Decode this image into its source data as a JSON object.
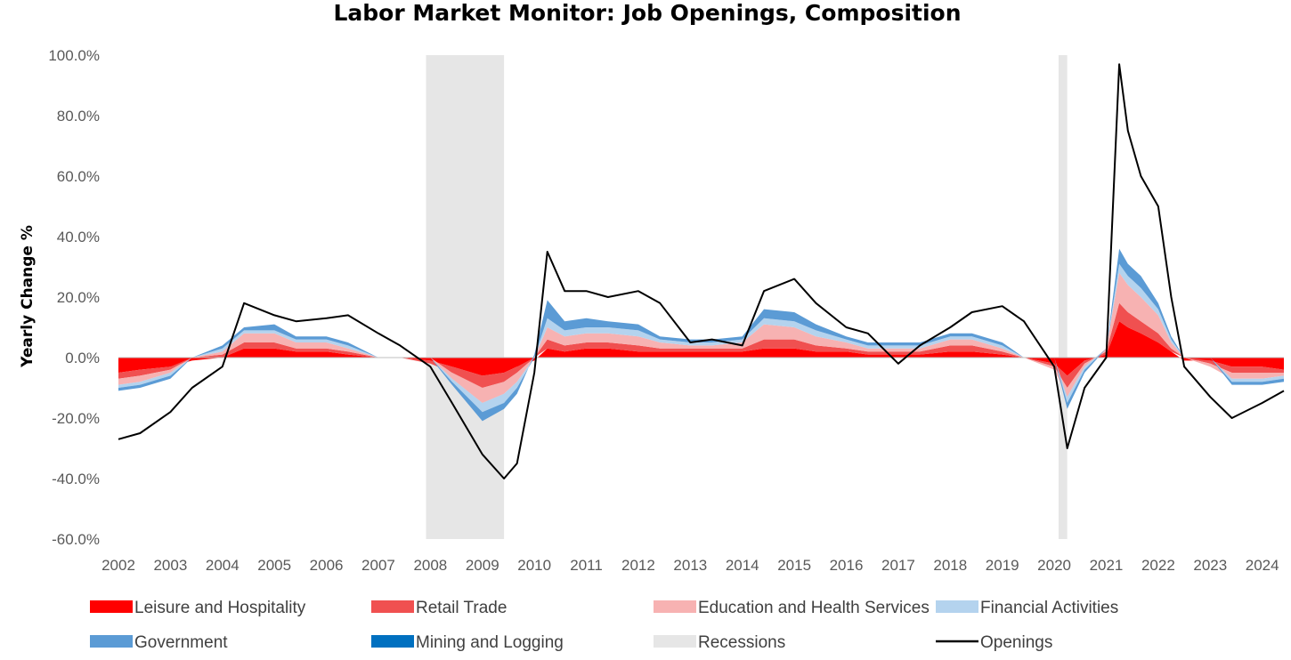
{
  "chart_data": {
    "type": "area",
    "title": "Labor Market Monitor: Job Openings, Composition",
    "ylabel": "Yearly Change %",
    "xlabel": "",
    "y_unit": "%",
    "ylim": [
      -60,
      100
    ],
    "yticks": [
      -60,
      -40,
      -20,
      0,
      20,
      40,
      60,
      80,
      100
    ],
    "ytick_labels": [
      "-60.0%",
      "-40.0%",
      "-20.0%",
      "0.0%",
      "20.0%",
      "40.0%",
      "60.0%",
      "80.0%",
      "100.0%"
    ],
    "xlim": [
      "2002-01",
      "2024-06"
    ],
    "xtick_labels": [
      "2002",
      "2003",
      "2004",
      "2005",
      "2006",
      "2007",
      "2008",
      "2009",
      "2010",
      "2011",
      "2012",
      "2013",
      "2014",
      "2015",
      "2016",
      "2017",
      "2018",
      "2019",
      "2020",
      "2021",
      "2022",
      "2023",
      "2024"
    ],
    "grid": false,
    "legend_position": "bottom",
    "colors": {
      "Leisure and Hospitality": "#ff0000",
      "Retail Trade": "#f05050",
      "Education and Health Services": "#f7b2b2",
      "Financial Activities": "#b4d3ee",
      "Government": "#5b9bd5",
      "Mining and Logging": "#0070c0",
      "Recessions": "#e6e6e6",
      "Openings": "#000000"
    },
    "recessions": [
      {
        "start": "2007-12",
        "end": "2009-06"
      },
      {
        "start": "2020-02",
        "end": "2020-04"
      }
    ],
    "x": [
      "2002-01",
      "2002-06",
      "2003-01",
      "2003-06",
      "2004-01",
      "2004-06",
      "2005-01",
      "2005-06",
      "2006-01",
      "2006-06",
      "2007-01",
      "2007-06",
      "2008-01",
      "2008-06",
      "2009-01",
      "2009-06",
      "2009-09",
      "2010-01",
      "2010-04",
      "2010-08",
      "2011-01",
      "2011-06",
      "2012-01",
      "2012-06",
      "2013-01",
      "2013-06",
      "2014-01",
      "2014-06",
      "2015-01",
      "2015-06",
      "2016-01",
      "2016-06",
      "2017-01",
      "2017-06",
      "2018-01",
      "2018-06",
      "2019-01",
      "2019-06",
      "2020-01",
      "2020-04",
      "2020-08",
      "2021-01",
      "2021-04",
      "2021-06",
      "2021-09",
      "2022-01",
      "2022-04",
      "2022-07",
      "2023-01",
      "2023-06",
      "2024-01",
      "2024-06"
    ],
    "series": [
      {
        "name": "Leisure and Hospitality",
        "values": [
          -5,
          -4,
          -3,
          -1,
          0,
          3,
          3,
          2,
          2,
          1,
          0,
          0,
          -1,
          -3,
          -6,
          -5,
          -3,
          -1,
          3,
          2,
          3,
          3,
          2,
          2,
          2,
          2,
          2,
          3,
          3,
          2,
          2,
          1,
          1,
          1,
          2,
          2,
          1,
          0,
          -2,
          -6,
          -1,
          1,
          12,
          10,
          8,
          5,
          2,
          -1,
          -1,
          -3,
          -3,
          -4
        ]
      },
      {
        "name": "Retail Trade",
        "values": [
          -2,
          -2,
          -1,
          0,
          1,
          2,
          2,
          1,
          1,
          1,
          0,
          0,
          -1,
          -2,
          -4,
          -3,
          -2,
          0,
          3,
          2,
          2,
          2,
          2,
          1,
          1,
          1,
          1,
          3,
          3,
          2,
          1,
          1,
          1,
          1,
          2,
          2,
          1,
          0,
          -1,
          -4,
          -1,
          1,
          6,
          5,
          4,
          3,
          1,
          0,
          -1,
          -2,
          -2,
          -1
        ]
      },
      {
        "name": "Education and Health Services",
        "values": [
          -2,
          -2,
          -1,
          0,
          1,
          3,
          3,
          2,
          2,
          1,
          0,
          0,
          0,
          -2,
          -5,
          -4,
          -3,
          0,
          4,
          3,
          3,
          3,
          3,
          2,
          1,
          1,
          2,
          5,
          4,
          3,
          2,
          1,
          1,
          1,
          2,
          2,
          1,
          0,
          -1,
          -3,
          -1,
          1,
          10,
          9,
          8,
          6,
          2,
          0,
          -1,
          -2,
          -2,
          -1
        ]
      },
      {
        "name": "Financial Activities",
        "values": [
          -1,
          -1,
          -1,
          0,
          1,
          1,
          1,
          1,
          1,
          1,
          0,
          0,
          0,
          -1,
          -3,
          -3,
          -2,
          0,
          3,
          2,
          2,
          2,
          2,
          1,
          1,
          1,
          1,
          2,
          2,
          2,
          1,
          1,
          1,
          1,
          1,
          1,
          1,
          0,
          0,
          -2,
          -1,
          0,
          3,
          3,
          3,
          2,
          1,
          0,
          0,
          -1,
          -1,
          -1
        ]
      },
      {
        "name": "Government",
        "values": [
          -1,
          -1,
          -1,
          0,
          1,
          1,
          2,
          1,
          1,
          1,
          0,
          0,
          0,
          -1,
          -3,
          -2,
          -2,
          1,
          6,
          3,
          3,
          2,
          2,
          1,
          1,
          1,
          1,
          3,
          3,
          2,
          1,
          1,
          1,
          1,
          1,
          1,
          1,
          0,
          0,
          -2,
          -1,
          0,
          5,
          4,
          4,
          2,
          1,
          0,
          0,
          -1,
          -1,
          -1
        ]
      },
      {
        "name": "Mining and Logging",
        "values": [
          0,
          0,
          0,
          0,
          0,
          0,
          0,
          0,
          0,
          0,
          0,
          0,
          0,
          0,
          0,
          0,
          0,
          0,
          0,
          0,
          0,
          0,
          0,
          0,
          0,
          0,
          0,
          0,
          0,
          0,
          0,
          0,
          0,
          0,
          0,
          0,
          0,
          0,
          0,
          0,
          0,
          0,
          0,
          0,
          0,
          0,
          0,
          0,
          0,
          0,
          0,
          0
        ]
      },
      {
        "name": "Openings",
        "values": [
          -27,
          -25,
          -18,
          -10,
          -3,
          18,
          14,
          12,
          13,
          14,
          8,
          4,
          -3,
          -15,
          -32,
          -40,
          -35,
          -5,
          35,
          22,
          22,
          20,
          22,
          18,
          5,
          6,
          4,
          22,
          26,
          18,
          10,
          8,
          -2,
          4,
          10,
          15,
          17,
          12,
          -3,
          -30,
          -10,
          0,
          97,
          75,
          60,
          50,
          20,
          -3,
          -13,
          -20,
          -15,
          -11
        ]
      }
    ],
    "legend": [
      {
        "label": "Leisure and Hospitality",
        "kind": "area"
      },
      {
        "label": "Retail Trade",
        "kind": "area"
      },
      {
        "label": "Education and Health Services",
        "kind": "area"
      },
      {
        "label": "Financial Activities",
        "kind": "area"
      },
      {
        "label": "Government",
        "kind": "area"
      },
      {
        "label": "Mining and Logging",
        "kind": "area"
      },
      {
        "label": "Recessions",
        "kind": "area"
      },
      {
        "label": "Openings",
        "kind": "line"
      }
    ]
  }
}
